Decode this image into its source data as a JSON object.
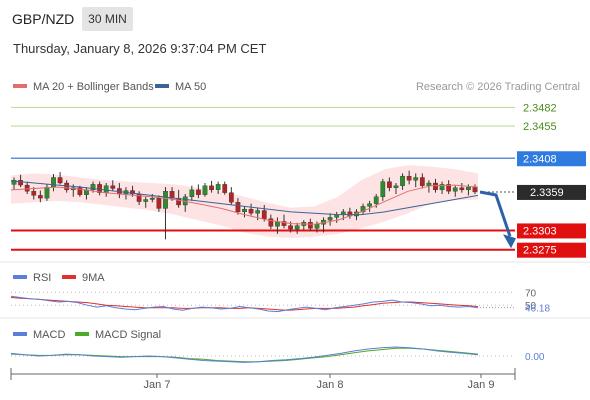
{
  "header": {
    "pair": "GBP/NZD",
    "timeframe": "30 MIN",
    "timestamp": "Thursday, January 8, 2026 9:37:04 PM CET"
  },
  "colors": {
    "bull_candle": "#2e8b2e",
    "bear_candle": "#b32424",
    "ma20": "#e07070",
    "bollinger_fill": "#fde3e3",
    "ma50": "#3b6496",
    "target_line": "#b6d98a",
    "resistance_line": "#5c8de0",
    "support_line": "#e01010",
    "arrow": "#2d62a8",
    "rsi": "#5b7fd6",
    "rsi_ma": "#e03030",
    "macd": "#5b7fd6",
    "macd_signal": "#4caa2a"
  },
  "chart_data": [
    {
      "type": "candlestick",
      "panel": "price",
      "legend": [
        "MA 20 + Bollinger Bands",
        "MA 50"
      ],
      "legend_placement": "top-left",
      "watermark": "Research © 2026 Trading Central",
      "x_ticks": [
        "Jan 7",
        "Jan 8",
        "Jan 9"
      ],
      "ylim": [
        2.326,
        2.35
      ],
      "last_price": 2.3359,
      "levels": [
        {
          "label": "2.3482",
          "value": 2.3482,
          "kind": "target"
        },
        {
          "label": "2.3455",
          "value": 2.3455,
          "kind": "target"
        },
        {
          "label": "2.3408",
          "value": 2.3408,
          "kind": "resistance"
        },
        {
          "label": "2.3303",
          "value": 2.3303,
          "kind": "support"
        },
        {
          "label": "2.3275",
          "value": 2.3275,
          "kind": "support"
        }
      ],
      "forecast_arrow": {
        "from": 2.3356,
        "to": 2.328,
        "direction": "down"
      },
      "candles": [
        [
          2.337,
          2.338,
          2.3362,
          2.3376
        ],
        [
          2.3376,
          2.3384,
          2.3366,
          2.3369
        ],
        [
          2.3369,
          2.3374,
          2.3356,
          2.336
        ],
        [
          2.336,
          2.3366,
          2.3348,
          2.3354
        ],
        [
          2.3354,
          2.3361,
          2.3344,
          2.335
        ],
        [
          2.335,
          2.337,
          2.3346,
          2.3366
        ],
        [
          2.3366,
          2.3385,
          2.336,
          2.338
        ],
        [
          2.338,
          2.3388,
          2.337,
          2.3372
        ],
        [
          2.3372,
          2.3376,
          2.3358,
          2.3362
        ],
        [
          2.3362,
          2.337,
          2.3352,
          2.3365
        ],
        [
          2.3365,
          2.3368,
          2.3352,
          2.3355
        ],
        [
          2.3355,
          2.3366,
          2.3348,
          2.3362
        ],
        [
          2.3362,
          2.3374,
          2.3358,
          2.337
        ],
        [
          2.337,
          2.3374,
          2.3354,
          2.3358
        ],
        [
          2.3358,
          2.3372,
          2.3352,
          2.3368
        ],
        [
          2.3368,
          2.3376,
          2.336,
          2.3364
        ],
        [
          2.3364,
          2.3372,
          2.335,
          2.3356
        ],
        [
          2.3356,
          2.3366,
          2.3348,
          2.3361
        ],
        [
          2.3361,
          2.3368,
          2.3352,
          2.3356
        ],
        [
          2.3356,
          2.336,
          2.334,
          2.3345
        ],
        [
          2.3345,
          2.3352,
          2.3336,
          2.3348
        ],
        [
          2.3348,
          2.3356,
          2.3344,
          2.335
        ],
        [
          2.335,
          2.3354,
          2.333,
          2.3335
        ],
        [
          2.3335,
          2.3366,
          2.329,
          2.336
        ],
        [
          2.336,
          2.3366,
          2.3346,
          2.335
        ],
        [
          2.335,
          2.3362,
          2.3336,
          2.334
        ],
        [
          2.334,
          2.3356,
          2.333,
          2.3352
        ],
        [
          2.3352,
          2.3368,
          2.3346,
          2.3362
        ],
        [
          2.3362,
          2.337,
          2.335,
          2.3355
        ],
        [
          2.3355,
          2.3372,
          2.3352,
          2.3368
        ],
        [
          2.3368,
          2.3375,
          2.3358,
          2.3362
        ],
        [
          2.3362,
          2.3374,
          2.3356,
          2.337
        ],
        [
          2.337,
          2.3374,
          2.3355,
          2.3358
        ],
        [
          2.3358,
          2.3366,
          2.334,
          2.3344
        ],
        [
          2.3344,
          2.335,
          2.3326,
          2.333
        ],
        [
          2.333,
          2.3338,
          2.3322,
          2.3334
        ],
        [
          2.3334,
          2.3342,
          2.3325,
          2.3328
        ],
        [
          2.3328,
          2.3336,
          2.3318,
          2.3332
        ],
        [
          2.3332,
          2.334,
          2.3316,
          2.332
        ],
        [
          2.332,
          2.3326,
          2.3305,
          2.3309
        ],
        [
          2.3309,
          2.3322,
          2.3298,
          2.3316
        ],
        [
          2.3316,
          2.3326,
          2.3306,
          2.331
        ],
        [
          2.331,
          2.3316,
          2.33,
          2.3305
        ],
        [
          2.3305,
          2.3314,
          2.3298,
          2.331
        ],
        [
          2.331,
          2.3318,
          2.3304,
          2.3315
        ],
        [
          2.3315,
          2.332,
          2.3302,
          2.3306
        ],
        [
          2.3306,
          2.3316,
          2.33,
          2.3312
        ],
        [
          2.3312,
          2.3322,
          2.33,
          2.3318
        ],
        [
          2.3318,
          2.3328,
          2.331,
          2.3322
        ],
        [
          2.3322,
          2.333,
          2.3314,
          2.3326
        ],
        [
          2.3326,
          2.3334,
          2.3318,
          2.333
        ],
        [
          2.333,
          2.3336,
          2.332,
          2.3324
        ],
        [
          2.3324,
          2.3334,
          2.3318,
          2.333
        ],
        [
          2.333,
          2.3342,
          2.3326,
          2.3338
        ],
        [
          2.3338,
          2.3346,
          2.333,
          2.3342
        ],
        [
          2.3342,
          2.3356,
          2.3336,
          2.3352
        ],
        [
          2.3352,
          2.3378,
          2.3346,
          2.3374
        ],
        [
          2.3374,
          2.338,
          2.336,
          2.3365
        ],
        [
          2.3365,
          2.3372,
          2.3356,
          2.3368
        ],
        [
          2.3368,
          2.3386,
          2.3362,
          2.3382
        ],
        [
          2.3382,
          2.339,
          2.337,
          2.3376
        ],
        [
          2.3376,
          2.3386,
          2.3366,
          2.338
        ],
        [
          2.338,
          2.3386,
          2.3364,
          2.3368
        ],
        [
          2.3368,
          2.3376,
          2.3358,
          2.3372
        ],
        [
          2.3372,
          2.3378,
          2.3358,
          2.3362
        ],
        [
          2.3362,
          2.3374,
          2.3356,
          2.337
        ],
        [
          2.337,
          2.3376,
          2.3356,
          2.336
        ],
        [
          2.336,
          2.3368,
          2.3352,
          2.3365
        ],
        [
          2.3365,
          2.3372,
          2.3358,
          2.3362
        ],
        [
          2.3362,
          2.337,
          2.3354,
          2.3366
        ],
        [
          2.3366,
          2.337,
          2.3356,
          2.3359
        ]
      ],
      "ma20": [
        2.3362,
        2.3364,
        2.3366,
        2.3363,
        2.3358,
        2.3355,
        2.3352,
        2.3348,
        2.3342,
        2.3335,
        2.3326,
        2.3318,
        2.3313,
        2.3312,
        2.3318,
        2.333,
        2.3345,
        2.336,
        2.3368,
        2.3369,
        2.3366
      ],
      "bollinger_upper": [
        2.3383,
        2.3386,
        2.3384,
        2.338,
        2.3376,
        2.3374,
        2.3372,
        2.337,
        2.3365,
        2.336,
        2.3352,
        2.3343,
        2.3336,
        2.3338,
        2.3352,
        2.3376,
        2.3392,
        2.3398,
        2.3396,
        2.3392,
        2.3386
      ],
      "bollinger_lower": [
        2.3342,
        2.3344,
        2.3346,
        2.3344,
        2.334,
        2.3336,
        2.3332,
        2.3326,
        2.3318,
        2.331,
        2.33,
        2.3294,
        2.3292,
        2.3294,
        2.3298,
        2.3306,
        2.3316,
        2.3328,
        2.3342,
        2.3347,
        2.3348
      ],
      "ma50": [
        2.3375,
        2.3372,
        2.3369,
        2.3366,
        2.3362,
        2.3358,
        2.3354,
        2.335,
        2.3346,
        2.3342,
        2.3338,
        2.3334,
        2.333,
        2.3328,
        2.3326,
        2.3326,
        2.333,
        2.3336,
        2.3342,
        2.3348,
        2.3354
      ]
    },
    {
      "type": "line",
      "panel": "rsi",
      "legend": [
        "RSI",
        "9MA"
      ],
      "ylim": [
        30,
        80
      ],
      "y_ticks": [
        "70",
        "50"
      ],
      "current_label": "46.18",
      "series": [
        {
          "name": "RSI",
          "values": [
            64,
            62,
            60,
            59,
            57,
            55,
            56,
            54,
            50,
            47,
            49,
            46,
            44,
            43,
            45,
            47,
            48,
            44,
            42,
            45,
            47,
            46,
            44,
            45,
            48,
            46,
            44,
            41,
            40,
            43,
            45,
            47,
            45,
            43,
            46,
            48,
            50,
            52,
            55,
            56,
            58,
            55,
            54,
            52,
            49,
            50,
            48,
            47,
            48,
            46
          ]
        },
        {
          "name": "9MA",
          "values": [
            62,
            61,
            60,
            59,
            58,
            57,
            56,
            55,
            54,
            52,
            50,
            49,
            48,
            47,
            46,
            46,
            46,
            46,
            45,
            45,
            46,
            46,
            46,
            45,
            45,
            46,
            45,
            44,
            43,
            42,
            43,
            44,
            45,
            45,
            45,
            46,
            47,
            49,
            51,
            53,
            54,
            55,
            55,
            54,
            53,
            52,
            51,
            50,
            49,
            48
          ]
        }
      ]
    },
    {
      "type": "line",
      "panel": "macd",
      "legend": [
        "MACD",
        "MACD Signal"
      ],
      "y_ticks": [
        "0.00"
      ],
      "ylim": [
        -0.0025,
        0.0025
      ],
      "series": [
        {
          "name": "MACD",
          "values": [
            0.0004,
            0.0002,
            0.0,
            0.0001,
            0.0003,
            0.0002,
            0.0,
            -0.0001,
            -0.0002,
            -0.0001,
            0.0,
            -0.0001,
            -0.0003,
            -0.0005,
            -0.0007,
            -0.0008,
            -0.0009,
            -0.001,
            -0.0009,
            -0.0007,
            -0.0006,
            -0.0004,
            -0.0002,
            0.0001,
            0.0004,
            0.0008,
            0.0011,
            0.0013,
            0.0014,
            0.0013,
            0.0011,
            0.0008,
            0.0006,
            0.0004,
            0.0002
          ]
        },
        {
          "name": "MACD Signal",
          "values": [
            0.0003,
            0.0002,
            0.0001,
            0.0001,
            0.0002,
            0.0002,
            0.0001,
            0.0,
            -0.0001,
            -0.0001,
            -0.0001,
            -0.0001,
            -0.0002,
            -0.0004,
            -0.0005,
            -0.0007,
            -0.0008,
            -0.0009,
            -0.0009,
            -0.0008,
            -0.0007,
            -0.0005,
            -0.0003,
            -0.0001,
            0.0002,
            0.0005,
            0.0008,
            0.001,
            0.0012,
            0.0012,
            0.0011,
            0.0009,
            0.0007,
            0.0005,
            0.0003
          ]
        }
      ]
    }
  ]
}
